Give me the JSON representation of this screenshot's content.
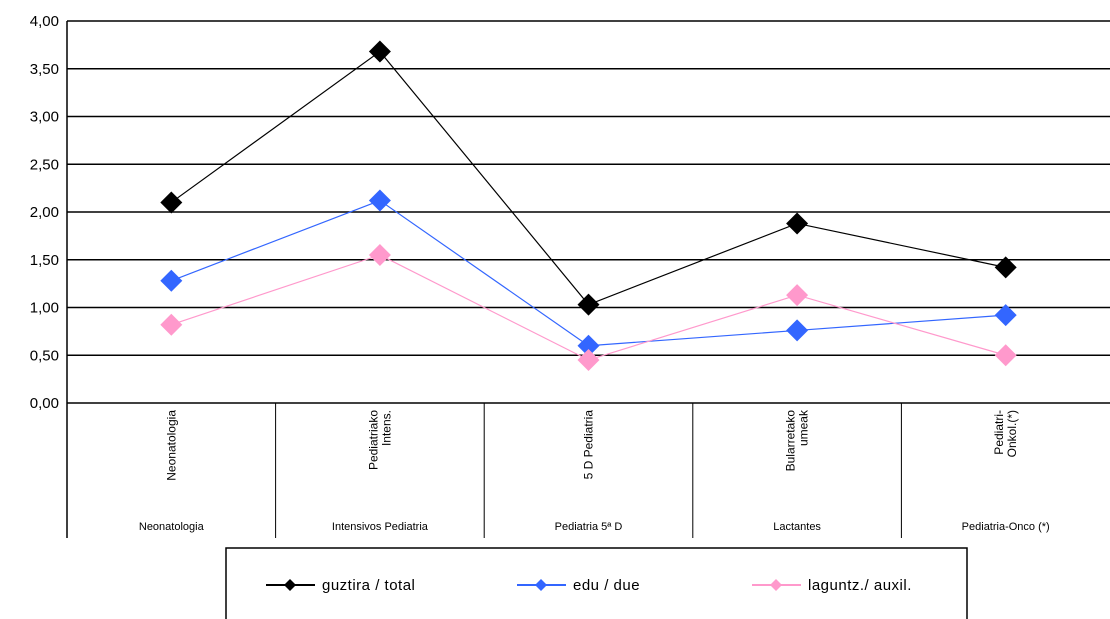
{
  "chart_data": {
    "type": "line",
    "categories": [
      "Neonatologia",
      "Intensivos Pediatria",
      "Pediatria 5ª D",
      "Lactantes",
      "Pediatria-Onco (*)"
    ],
    "categories_rotated": [
      [
        "Neonatologia"
      ],
      [
        "Pediatriako",
        "Intens."
      ],
      [
        "5 D Pediatria"
      ],
      [
        "Bularretako",
        "umeak"
      ],
      [
        "Pediatri-",
        "Onkol.(*)"
      ]
    ],
    "series": [
      {
        "name": "guztira / total",
        "values": [
          2.1,
          3.68,
          1.03,
          1.88,
          1.42
        ],
        "color": "#000000",
        "marker": "diamond"
      },
      {
        "name": "edu / due",
        "values": [
          1.28,
          2.12,
          0.6,
          0.76,
          0.92
        ],
        "color": "#3366ff",
        "marker": "diamond"
      },
      {
        "name": "laguntz./ auxil.",
        "values": [
          0.82,
          1.55,
          0.45,
          1.13,
          0.5
        ],
        "color": "#ff99cc",
        "marker": "diamond"
      }
    ],
    "yticks": [
      "4,00",
      "3,50",
      "3,00",
      "2,50",
      "2,00",
      "1,50",
      "1,00",
      "0,50",
      "0,00"
    ],
    "ylim": [
      0,
      4
    ],
    "grid": true,
    "legend": "bottom"
  }
}
